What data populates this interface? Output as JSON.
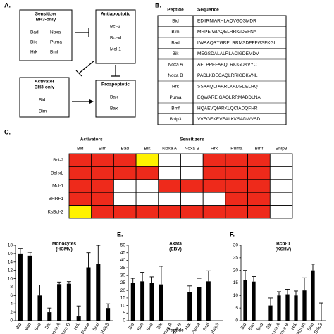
{
  "panel_a": {
    "label": "A.",
    "sensitizer": {
      "title": [
        "Sensitizer",
        "BH3-only"
      ],
      "items": [
        "Bad",
        "Noxa",
        "Bik",
        "Puma",
        "Hrk",
        "Bmf"
      ]
    },
    "antiapoptotic": {
      "title": [
        "Antiapoptotic"
      ],
      "items": [
        "Bcl-2",
        "Bcl-xL",
        "Mcl-1"
      ]
    },
    "activator": {
      "title": [
        "Activator",
        "BH3-only"
      ],
      "items": [
        "Bid",
        "Bim"
      ]
    },
    "proapoptotic": {
      "title": [
        "Proapoptotic"
      ],
      "items": [
        "Bak",
        "Bax"
      ]
    }
  },
  "panel_b": {
    "label": "B.",
    "columns": [
      "Peptide",
      "Sequence"
    ],
    "rows": [
      [
        "Bid",
        "EDIIRNIARHLAQVGDSMDR"
      ],
      [
        "Bim",
        "MRPEIWIAQELRRIGDEFNA"
      ],
      [
        "Bad",
        "LWAAQRYGRELRRMSDEFEGSFKGL"
      ],
      [
        "Bik",
        "MEGSDALALRLACIGDEMDV"
      ],
      [
        "Noxa A",
        "AELPPEFAAQLRKIGDKVYC"
      ],
      [
        "Noxa B",
        "PADLKDECAQLRRIGDKVNL"
      ],
      [
        "Hrk",
        "SSAAQLTAARLKALGDELHQ"
      ],
      [
        "Puma",
        "EQWAREIGAQLRRMADDLNA"
      ],
      [
        "Bmf",
        "HQAEVQIARKLQCIADQFHR"
      ],
      [
        "Bnip3",
        "VVEGEKEVEALKKSADWVSD"
      ]
    ]
  },
  "panel_c": {
    "label": "C.",
    "groups": [
      "Activators",
      "Sensitizers"
    ],
    "columns": [
      "Bid",
      "Bim",
      "Bad",
      "Bik",
      "Noxa A",
      "Noxa B",
      "Hrk",
      "Puma",
      "Bmf",
      "Bnip3"
    ],
    "rows": [
      "Bcl-2",
      "Bcl-xL",
      "Mcl-1",
      "BHRF1",
      "KsBcl-2"
    ],
    "cells": [
      [
        "#ee2a1b",
        "#ee2a1b",
        "#ee2a1b",
        "#fff200",
        "#ffffff",
        "#ffffff",
        "#ee2a1b",
        "#ee2a1b",
        "#ee2a1b",
        "#ffffff"
      ],
      [
        "#ee2a1b",
        "#ee2a1b",
        "#ee2a1b",
        "#ee2a1b",
        "#ffffff",
        "#ffffff",
        "#ee2a1b",
        "#ee2a1b",
        "#ee2a1b",
        "#ffffff"
      ],
      [
        "#ee2a1b",
        "#ee2a1b",
        "#ffffff",
        "#ffffff",
        "#ee2a1b",
        "#ee2a1b",
        "#ee2a1b",
        "#ee2a1b",
        "#ee2a1b",
        "#ffffff"
      ],
      [
        "#ee2a1b",
        "#ee2a1b",
        "#ffffff",
        "#ffffff",
        "#ffffff",
        "#ffffff",
        "#ffffff",
        "#ee2a1b",
        "#ee2a1b",
        "#ffffff"
      ],
      [
        "#fff200",
        "#ee2a1b",
        "#ee2a1b",
        "#ee2a1b",
        "#ee2a1b",
        "#ee2a1b",
        "#ee2a1b",
        "#ee2a1b",
        "#ee2a1b",
        "#ffffff"
      ]
    ]
  },
  "chart_data": [
    {
      "type": "bar",
      "title": [
        "Monocytes",
        "(HCMV)"
      ],
      "color": "#000000",
      "categories": [
        "Bid",
        "Bim",
        "Bad",
        "Bik",
        "Noxa A",
        "Noxa B",
        "Hrk",
        "Puma",
        "Bmf",
        "Bnip3"
      ],
      "values": [
        16,
        15.5,
        6,
        2,
        8.7,
        8.8,
        1,
        12.7,
        13.5,
        3
      ],
      "errors": [
        1.2,
        0.8,
        2.5,
        1,
        0.5,
        0.5,
        2.5,
        3.5,
        4.5,
        1
      ],
      "ylim": [
        0,
        18
      ],
      "yticks": [
        0,
        2,
        4,
        6,
        8,
        10,
        12,
        14,
        16,
        18
      ]
    },
    {
      "type": "bar",
      "panel_label": "E.",
      "title": [
        "Akata",
        "(EBV)"
      ],
      "color": "#000000",
      "x_label": "Peptide",
      "categories": [
        "Bid",
        "Bim",
        "Bad",
        "Bik",
        "Noxa A",
        "Noxa B",
        "Hrk",
        "Puma",
        "Bmf",
        "Bnip3"
      ],
      "values": [
        25,
        26,
        25,
        24,
        0,
        0,
        19,
        22,
        26,
        0
      ],
      "errors": [
        3,
        6,
        4,
        12,
        null,
        null,
        4,
        6,
        7,
        null
      ],
      "ylim": [
        0,
        50
      ],
      "yticks": [
        0,
        5,
        10,
        15,
        20,
        25,
        30,
        35,
        40,
        45,
        50
      ]
    },
    {
      "type": "bar",
      "panel_label": "F.",
      "title": [
        "Bcbl-1",
        "(KSHV)"
      ],
      "color": "#000000",
      "categories": [
        "Bid",
        "Bim",
        "Bad",
        "Bik",
        "Noxa A",
        "Noxa B",
        "Hrk",
        "PUMA",
        "Bmf",
        "Bnip3"
      ],
      "values": [
        16,
        15.5,
        0,
        6,
        10,
        10.5,
        10,
        12,
        20,
        0
      ],
      "errors": [
        4,
        2,
        null,
        3,
        1.5,
        2,
        1.8,
        5,
        2.5,
        7
      ],
      "ylim": [
        0,
        30
      ],
      "yticks": [
        0,
        5,
        10,
        15,
        20,
        25,
        30
      ]
    }
  ]
}
